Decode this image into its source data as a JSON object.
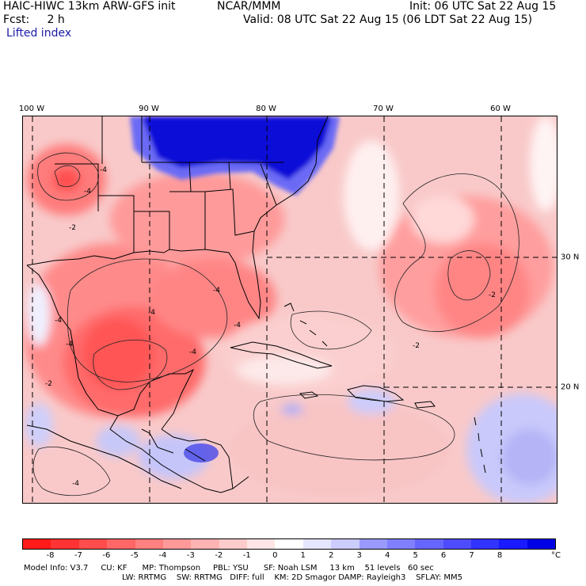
{
  "header": {
    "model_title": "HAIC-HIWC 13km ARW-GFS init",
    "agency": "NCAR/MMM",
    "init": "Init: 06 UTC Sat 22 Aug 15",
    "fcst": "Fcst:     2 h",
    "valid": "Valid: 08 UTC Sat 22 Aug 15 (06 LDT Sat 22 Aug 15)",
    "field": "Lifted index"
  },
  "map": {
    "lon_labels": [
      "100 W",
      "90 W",
      "80 W",
      "70 W",
      "60 W"
    ],
    "lat_labels": [
      "30 N",
      "20 N"
    ],
    "contour_labels": [
      "-4",
      "-4",
      "-2",
      "-4",
      "-4",
      "-4",
      "-4",
      "-2",
      "-2",
      "-4",
      "-4",
      "-4",
      "-2"
    ]
  },
  "colorbar": {
    "ticks": [
      "-8",
      "-7",
      "-6",
      "-5",
      "-4",
      "-3",
      "-2",
      "-1",
      "0",
      "1",
      "2",
      "3",
      "4",
      "5",
      "6",
      "7",
      "8"
    ],
    "unit": "°C",
    "colors": [
      "#ff1a1a",
      "#ff3333",
      "#ff4d4d",
      "#ff6666",
      "#ff8080",
      "#ff9999",
      "#ffb3b3",
      "#ffcccc",
      "#ffe6e6",
      "#ffffff",
      "#e6e6ff",
      "#ccccff",
      "#9999ff",
      "#8080ff",
      "#6666ff",
      "#4d4dff",
      "#3333ff",
      "#1a1aff",
      "#0000e6"
    ]
  },
  "model_info": {
    "line1": "Model Info: V3.7     CU: KF      MP: Thompson     PBL: YSU      SF: Noah LSM     13 km    51 levels   60 sec",
    "line2": "LW: RRTMG    SW: RRTMG   DIFF: full    KM: 2D Smagor DAMP: Rayleigh3    SFLAY: MM5"
  }
}
